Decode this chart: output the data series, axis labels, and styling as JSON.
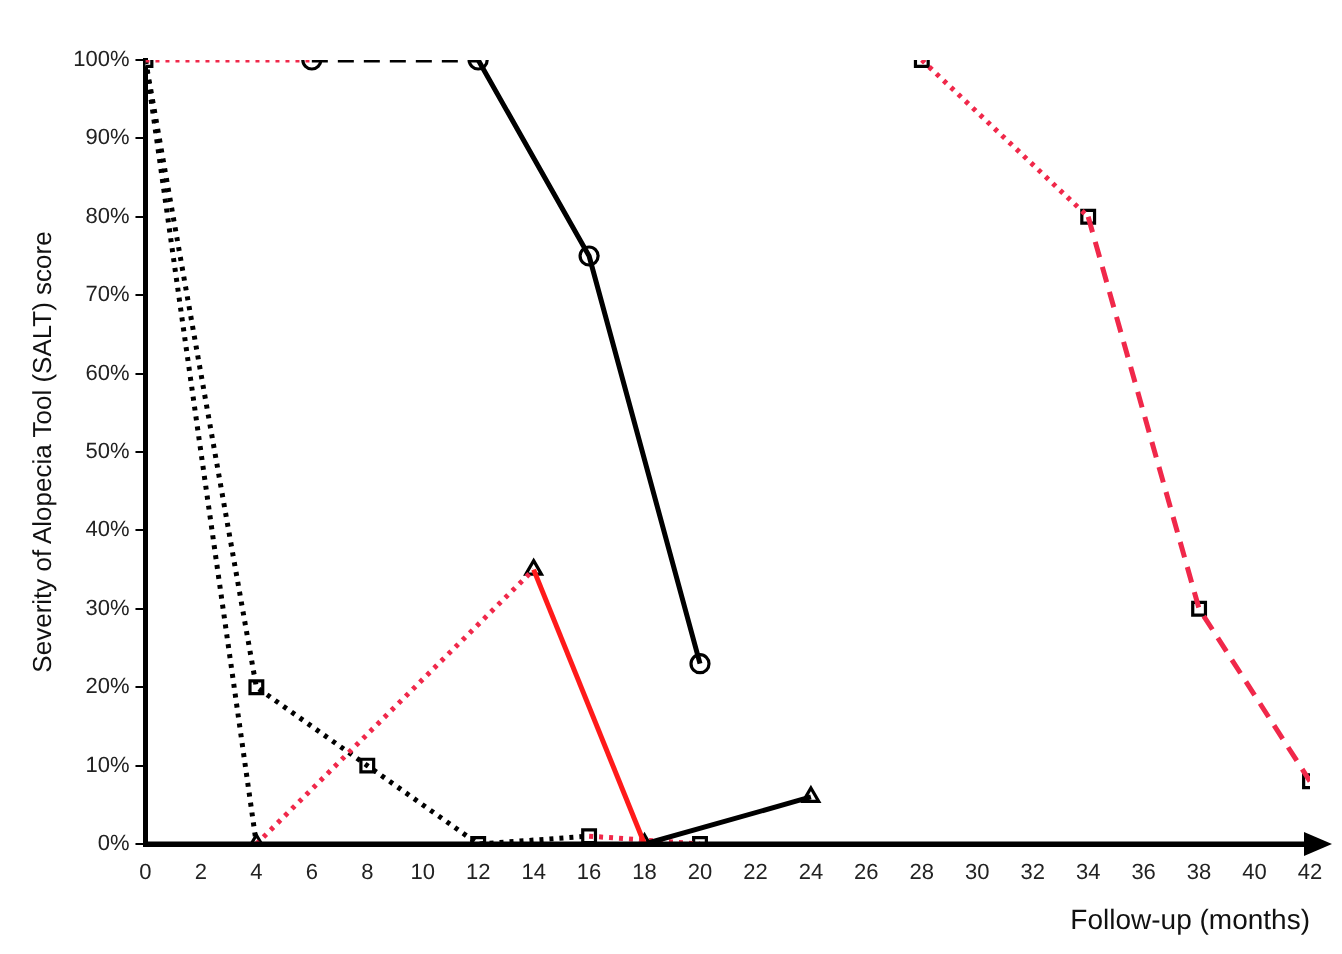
{
  "chart_data": {
    "type": "line",
    "xlabel": "Follow-up (months)",
    "ylabel": "Severity of Alopecia Tool (SALT) score",
    "xlim": [
      0,
      42
    ],
    "xticks": [
      0,
      2,
      4,
      6,
      8,
      10,
      12,
      14,
      16,
      18,
      20,
      22,
      24,
      26,
      28,
      30,
      32,
      34,
      36,
      38,
      40,
      42
    ],
    "ylim": [
      0,
      100
    ],
    "yticks": [
      {
        "value": 0,
        "label": "0%"
      },
      {
        "value": 10,
        "label": "10%"
      },
      {
        "value": 20,
        "label": "20%"
      },
      {
        "value": 30,
        "label": "30%"
      },
      {
        "value": 40,
        "label": "40%"
      },
      {
        "value": 50,
        "label": "50%"
      },
      {
        "value": 60,
        "label": "60%"
      },
      {
        "value": 70,
        "label": "70%"
      },
      {
        "value": 80,
        "label": "80%"
      },
      {
        "value": 90,
        "label": "90%"
      },
      {
        "value": 100,
        "label": "100%"
      }
    ],
    "grid": false,
    "legend": false,
    "series": [
      {
        "color": "#f0284a",
        "line_style": "dotted",
        "marker": "none",
        "x": [
          0,
          6
        ],
        "values": [
          100,
          100
        ]
      },
      {
        "color": "#000000",
        "line_style": "dashed",
        "marker": "none",
        "x": [
          6,
          12
        ],
        "values": [
          100,
          100
        ]
      },
      {
        "color": "#000000",
        "line_style": "solid",
        "marker": "none",
        "x": [
          12,
          16,
          20
        ],
        "values": [
          100,
          75,
          23
        ]
      },
      {
        "color": "#000000",
        "line_style": "dotted",
        "marker": "none",
        "x": [
          0,
          4
        ],
        "values": [
          100,
          0
        ]
      },
      {
        "color": "#f0284a",
        "line_style": "dotted",
        "marker": "none",
        "x": [
          4,
          14
        ],
        "values": [
          0,
          35
        ]
      },
      {
        "color": "#ff1a1a",
        "line_style": "solid",
        "marker": "none",
        "x": [
          14,
          18
        ],
        "values": [
          35,
          0
        ]
      },
      {
        "color": "#000000",
        "line_style": "solid",
        "marker": "none",
        "x": [
          18,
          24
        ],
        "values": [
          0,
          6
        ]
      },
      {
        "color": "#000000",
        "line_style": "dotted",
        "marker": "none",
        "x": [
          0,
          4,
          8,
          12,
          16
        ],
        "values": [
          100,
          20,
          10,
          0,
          1
        ]
      },
      {
        "color": "#f0284a",
        "line_style": "dotted",
        "marker": "none",
        "x": [
          16,
          20
        ],
        "values": [
          1,
          0
        ]
      },
      {
        "color": "#f0284a",
        "line_style": "dotted",
        "marker": "none",
        "x": [
          28,
          34
        ],
        "values": [
          100,
          80
        ]
      },
      {
        "color": "#f0284a",
        "line_style": "dashed",
        "marker": "none",
        "x": [
          34,
          38,
          42
        ],
        "values": [
          80,
          30,
          8
        ]
      },
      {
        "type": "scatter",
        "color": "#000000",
        "marker": "circle",
        "x": [
          6,
          12,
          16,
          20
        ],
        "values": [
          100,
          100,
          75,
          23
        ]
      },
      {
        "type": "scatter",
        "color": "#000000",
        "marker": "triangle",
        "x": [
          4,
          14,
          18,
          24
        ],
        "values": [
          0,
          35,
          0,
          6
        ]
      },
      {
        "type": "scatter",
        "color": "#000000",
        "marker": "square",
        "x": [
          0,
          4,
          8,
          12,
          16,
          20,
          28,
          34,
          38,
          42
        ],
        "values": [
          100,
          20,
          10,
          0,
          1,
          0,
          100,
          80,
          30,
          8
        ]
      }
    ]
  }
}
